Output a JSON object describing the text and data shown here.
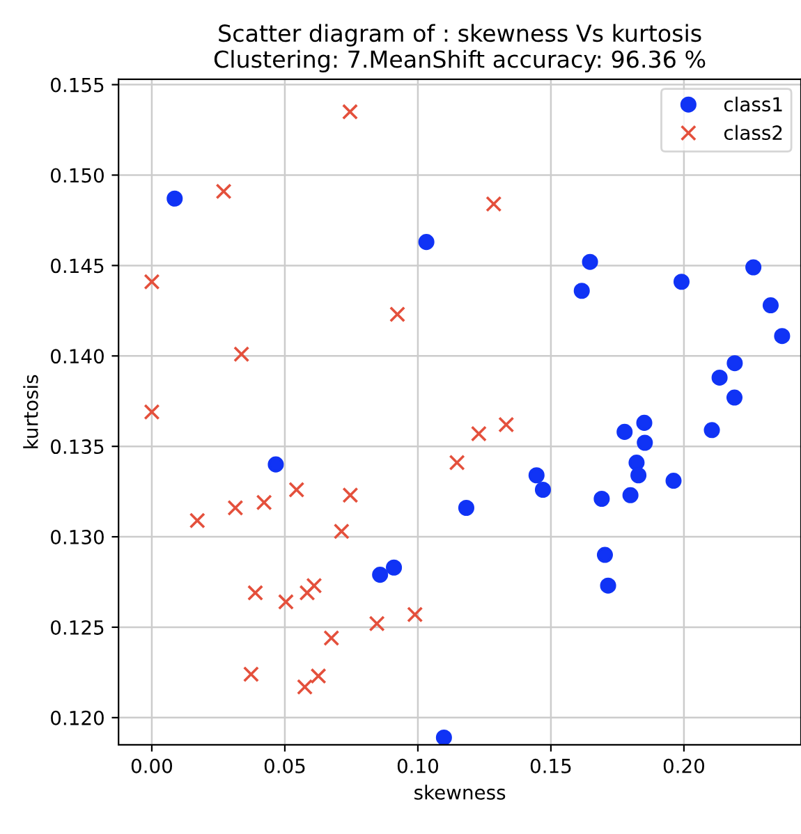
{
  "chart_data": {
    "type": "scatter",
    "title": "Scatter diagram of : skewness Vs kurtosis\nClustering: 7.MeanShift accuracy: 96.36 %",
    "xlabel": "skewness",
    "ylabel": "kurtosis",
    "xlim": [
      -0.0125,
      0.244
    ],
    "ylim": [
      0.1185,
      0.1553
    ],
    "xticks": [
      {
        "value": 0.0,
        "label": "0.00"
      },
      0.05,
      {
        "value": 0.1,
        "label": "0.10"
      },
      0.15,
      {
        "value": 0.2,
        "label": "0.20"
      }
    ],
    "yticks": [
      {
        "value": 0.12,
        "label": "0.120"
      },
      0.125,
      {
        "value": 0.13,
        "label": "0.130"
      },
      0.135,
      {
        "value": 0.14,
        "label": "0.140"
      },
      0.145,
      {
        "value": 0.15,
        "label": "0.150"
      },
      0.155
    ],
    "grid": true,
    "legend": "top right",
    "series": [
      {
        "name": "class1",
        "color": "#1033f5",
        "marker": "circle",
        "x": [
          0.0086,
          0.1032,
          0.1647,
          0.1616,
          0.1991,
          0.2261,
          0.2326,
          0.2369,
          0.2191,
          0.2134,
          0.219,
          0.1851,
          0.1777,
          0.2105,
          0.1853,
          0.1822,
          0.1829,
          0.1961,
          0.1799,
          0.1691,
          0.1446,
          0.147,
          0.1182,
          0.1703,
          0.1715,
          0.0466,
          0.0858,
          0.091,
          0.1098
        ],
        "values": [
          0.1487,
          0.1463,
          0.1452,
          0.1436,
          0.1441,
          0.1449,
          0.1428,
          0.1411,
          0.1396,
          0.1388,
          0.1377,
          0.1363,
          0.1358,
          0.1359,
          0.1352,
          0.1341,
          0.1334,
          0.1331,
          0.1323,
          0.1321,
          0.1334,
          0.1326,
          0.1316,
          0.129,
          0.1273,
          0.134,
          0.1279,
          0.1283,
          0.1189
        ]
      },
      {
        "name": "class2",
        "color": "#e4503c",
        "marker": "cross",
        "x": [
          0.0745,
          0.027,
          0.0,
          0.0923,
          0.0337,
          0.0,
          0.1285,
          0.1229,
          0.1332,
          0.1147,
          0.0171,
          0.0314,
          0.0422,
          0.0544,
          0.0746,
          0.0713,
          0.0389,
          0.0504,
          0.0584,
          0.061,
          0.0989,
          0.0846,
          0.0675,
          0.0373,
          0.0575,
          0.0626
        ],
        "values": [
          0.1535,
          0.1491,
          0.1441,
          0.1423,
          0.1401,
          0.1369,
          0.1484,
          0.1357,
          0.1362,
          0.1341,
          0.1309,
          0.1316,
          0.1319,
          0.1326,
          0.1323,
          0.1303,
          0.1269,
          0.1264,
          0.1269,
          0.1273,
          0.1257,
          0.1252,
          0.1244,
          0.1224,
          0.1217,
          0.1223
        ]
      }
    ]
  }
}
